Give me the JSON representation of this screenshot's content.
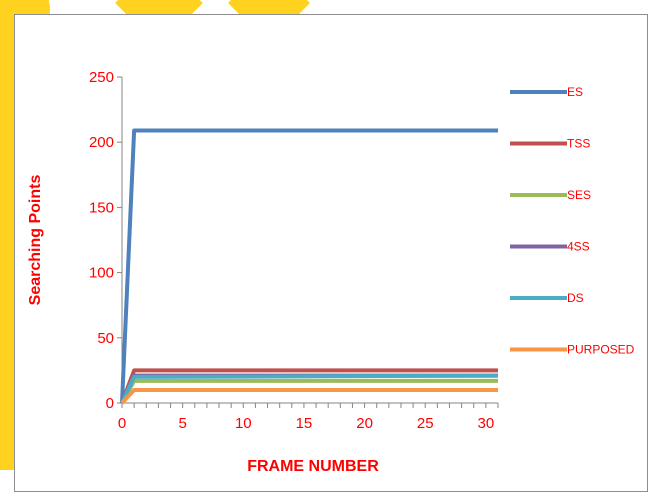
{
  "chart_data": {
    "type": "line",
    "title": "",
    "xlabel": "FRAME NUMBER",
    "ylabel": "Searching Points",
    "xlim": [
      0,
      31
    ],
    "ylim": [
      0,
      250
    ],
    "x_ticks": [
      0,
      5,
      10,
      15,
      20,
      25,
      30
    ],
    "y_ticks": [
      0,
      50,
      100,
      150,
      200,
      250
    ],
    "x": [
      0,
      1,
      31
    ],
    "series": [
      {
        "name": "ES",
        "color": "#4f81bd",
        "values": [
          0,
          209,
          209
        ]
      },
      {
        "name": "TSS",
        "color": "#c0504d",
        "values": [
          0,
          25,
          25
        ]
      },
      {
        "name": "SES",
        "color": "#9bbb59",
        "values": [
          0,
          17,
          17
        ]
      },
      {
        "name": "4SS",
        "color": "#8064a2",
        "values": [
          0,
          21,
          21
        ]
      },
      {
        "name": "DS",
        "color": "#4bacc6",
        "values": [
          0,
          20,
          21
        ]
      },
      {
        "name": "PURPOSED",
        "color": "#f79646",
        "values": [
          0,
          10,
          10
        ]
      }
    ],
    "grid": false,
    "legend_position": "right"
  }
}
